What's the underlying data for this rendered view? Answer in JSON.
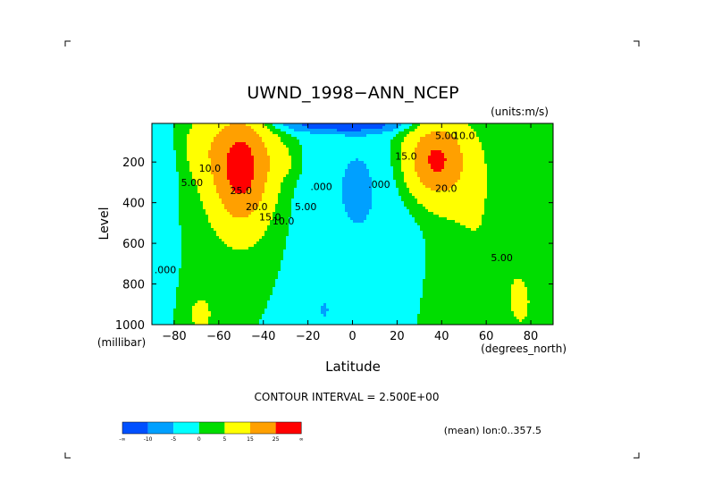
{
  "chart_data": {
    "type": "heatmap",
    "subtype": "filled-contour",
    "title": "UWND_1998−ANN_NCEP",
    "units_label": "(units:m/s)",
    "xlabel": "Latitude",
    "xunits_label": "(degrees_north)",
    "ylabel": "Level",
    "yunits_label": "(millibar)",
    "xlim": [
      -90,
      90
    ],
    "ylim": [
      1000,
      10
    ],
    "x_ticks": [
      -80,
      -60,
      -40,
      -20,
      0,
      20,
      40,
      60,
      80
    ],
    "x_tick_labels": [
      "−80",
      "−60",
      "−40",
      "−20",
      "0",
      "20",
      "40",
      "60",
      "80"
    ],
    "y_ticks": [
      200,
      400,
      600,
      800,
      1000
    ],
    "y_tick_labels": [
      "200",
      "400",
      "600",
      "800",
      "1000"
    ],
    "grid": false,
    "contour_interval_label": "CONTOUR INTERVAL = 2.500E+00",
    "mean_label": "(mean) lon:0..357.5",
    "contour_labels": [
      {
        "text": "10.0",
        "lat": -64,
        "level": 230
      },
      {
        "text": "5.00",
        "lat": -72,
        "level": 300
      },
      {
        "text": "25.0",
        "lat": -50,
        "level": 340
      },
      {
        "text": "20.0",
        "lat": -43,
        "level": 420
      },
      {
        "text": "15.0",
        "lat": -37,
        "level": 470
      },
      {
        "text": "10.0",
        "lat": -31,
        "level": 490
      },
      {
        "text": "5.00",
        "lat": -21,
        "level": 420
      },
      {
        "text": ".000",
        "lat": -14,
        "level": 320
      },
      {
        "text": ".000",
        "lat": 12,
        "level": 310
      },
      {
        "text": "15.0",
        "lat": 24,
        "level": 170
      },
      {
        "text": "5.00",
        "lat": 42,
        "level": 70
      },
      {
        "text": "10.0",
        "lat": 50,
        "level": 70
      },
      {
        "text": "20.0",
        "lat": 42,
        "level": 330
      },
      {
        "text": "5.00",
        "lat": 67,
        "level": 670
      },
      {
        "text": ".000",
        "lat": -84,
        "level": 730
      }
    ],
    "colorbar": {
      "ticks": [
        "-∞",
        "-10",
        "-5",
        "0",
        "5",
        "15",
        "25",
        "∞"
      ],
      "colors": [
        "#0050ff",
        "#00a0ff",
        "#00ffff",
        "#00dd00",
        "#ffff00",
        "#ffa000",
        "#ff0000"
      ]
    },
    "field_centers": [
      {
        "name": "southern-jet",
        "lat": -48,
        "level": 250,
        "value": 30
      },
      {
        "name": "northern-jet",
        "lat": 37,
        "level": 190,
        "value": 26
      },
      {
        "name": "tropical-low",
        "lat": 2,
        "level": 350,
        "value": -7
      },
      {
        "name": "tropical-surface-low",
        "lat": -13,
        "level": 930,
        "value": -7
      }
    ]
  },
  "colors": {
    "blue_dark": "#0050ff",
    "blue": "#00a0ff",
    "cyan": "#00ffff",
    "green": "#00dd00",
    "yellow": "#ffff00",
    "orange": "#ffa000",
    "red": "#ff0000"
  }
}
